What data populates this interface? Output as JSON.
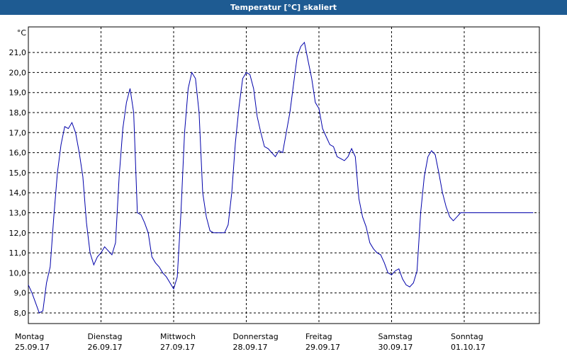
{
  "window": {
    "title": "Temperatur [°C] skaliert"
  },
  "chart_data": {
    "type": "line",
    "title": "Temperatur [°C] skaliert",
    "ylabel": "°C",
    "xlabel": "",
    "ylim": [
      7.5,
      22.0
    ],
    "yticks": [
      "8,0",
      "9,0",
      "10,0",
      "11,0",
      "12,0",
      "13,0",
      "14,0",
      "15,0",
      "16,0",
      "17,0",
      "18,0",
      "19,0",
      "20,0",
      "21,0"
    ],
    "ytick_values": [
      8,
      9,
      10,
      11,
      12,
      13,
      14,
      15,
      16,
      17,
      18,
      19,
      20,
      21
    ],
    "xlim": [
      0,
      7
    ],
    "days": [
      {
        "day": "Montag",
        "date": "25.09.17"
      },
      {
        "day": "Dienstag",
        "date": "26.09.17"
      },
      {
        "day": "Mittwoch",
        "date": "27.09.17"
      },
      {
        "day": "Donnerstag",
        "date": "28.09.17"
      },
      {
        "day": "Freitag",
        "date": "29.09.17"
      },
      {
        "day": "Samstag",
        "date": "30.09.17"
      },
      {
        "day": "Sonntag",
        "date": "01.10.17"
      }
    ],
    "grid": true,
    "colors": {
      "line": "#0000aa",
      "grid": "#000000",
      "title_bar": "#1e5b92"
    },
    "series": [
      {
        "x": [
          0.0,
          0.05,
          0.1,
          0.15,
          0.2,
          0.25,
          0.3,
          0.35,
          0.4,
          0.45,
          0.5,
          0.55,
          0.6,
          0.65,
          0.7,
          0.75,
          0.8,
          0.85,
          0.9,
          0.95,
          1.0,
          1.05,
          1.1,
          1.15,
          1.2,
          1.25,
          1.3,
          1.35,
          1.4,
          1.45,
          1.5,
          1.55,
          1.6,
          1.65,
          1.7,
          1.75,
          1.8,
          1.85,
          1.9,
          1.95,
          2.0,
          2.05,
          2.1,
          2.15,
          2.2,
          2.25,
          2.3,
          2.35,
          2.4,
          2.45,
          2.5,
          2.55,
          2.6,
          2.65,
          2.7,
          2.75,
          2.8,
          2.85,
          2.9,
          2.95,
          3.0,
          3.05,
          3.1,
          3.15,
          3.2,
          3.25,
          3.3,
          3.35,
          3.4,
          3.45,
          3.5,
          3.55,
          3.6,
          3.65,
          3.7,
          3.75,
          3.8,
          3.85,
          3.9,
          3.95,
          4.0,
          4.05,
          4.1,
          4.15,
          4.2,
          4.25,
          4.3,
          4.35,
          4.4,
          4.45,
          4.5,
          4.55,
          4.6,
          4.65,
          4.7,
          4.75,
          4.8,
          4.85,
          4.9,
          4.95,
          5.0,
          5.05,
          5.1,
          5.15,
          5.2,
          5.25,
          5.3,
          5.35,
          5.4,
          5.45,
          5.5,
          5.55,
          5.6,
          5.65,
          5.7,
          5.75,
          5.8,
          5.85,
          5.9,
          5.95,
          6.0,
          6.05,
          6.1,
          6.15,
          6.2,
          6.25,
          6.3,
          6.35,
          6.4,
          6.45,
          6.5,
          6.55,
          6.6,
          6.65,
          6.7,
          6.75,
          6.8,
          6.85,
          6.9,
          6.95,
          7.0
        ],
        "y": [
          9.4,
          9.0,
          8.5,
          8.0,
          8.1,
          9.5,
          10.3,
          12.8,
          15.0,
          16.4,
          17.3,
          17.2,
          17.5,
          17.0,
          16.0,
          14.8,
          12.5,
          11.0,
          10.4,
          10.8,
          11.0,
          11.3,
          11.1,
          10.9,
          11.5,
          14.8,
          17.2,
          18.5,
          19.2,
          18.0,
          13.0,
          12.9,
          12.5,
          12.0,
          10.8,
          10.5,
          10.3,
          10.0,
          9.8,
          9.5,
          9.2,
          9.8,
          13.0,
          17.0,
          19.2,
          20.0,
          19.7,
          18.0,
          14.0,
          12.8,
          12.1,
          12.0,
          12.0,
          12.0,
          12.0,
          12.4,
          14.0,
          16.5,
          18.3,
          19.7,
          20.0,
          19.9,
          19.2,
          17.8,
          17.0,
          16.3,
          16.2,
          16.0,
          15.8,
          16.1,
          16.0,
          17.0,
          18.0,
          19.4,
          20.8,
          21.3,
          21.5,
          20.6,
          19.7,
          18.5,
          18.2,
          17.2,
          16.8,
          16.4,
          16.3,
          15.8,
          15.7,
          15.6,
          15.8,
          16.2,
          15.8,
          13.7,
          12.8,
          12.3,
          11.5,
          11.2,
          11.0,
          10.9,
          10.5,
          10.0,
          9.9,
          10.1,
          10.2,
          9.7,
          9.4,
          9.3,
          9.5,
          10.1,
          13.0,
          14.8,
          15.8,
          16.1,
          15.9,
          15.0,
          14.0,
          13.3,
          12.8,
          12.6,
          12.8,
          13.0,
          13.0,
          13.0,
          13.0,
          13.0,
          13.0,
          13.0,
          13.0,
          13.0,
          13.0,
          13.0,
          13.0,
          13.0,
          13.0,
          13.0,
          13.0,
          13.0,
          13.0,
          13.0,
          13.0,
          13.0,
          13.0
        ]
      }
    ]
  }
}
